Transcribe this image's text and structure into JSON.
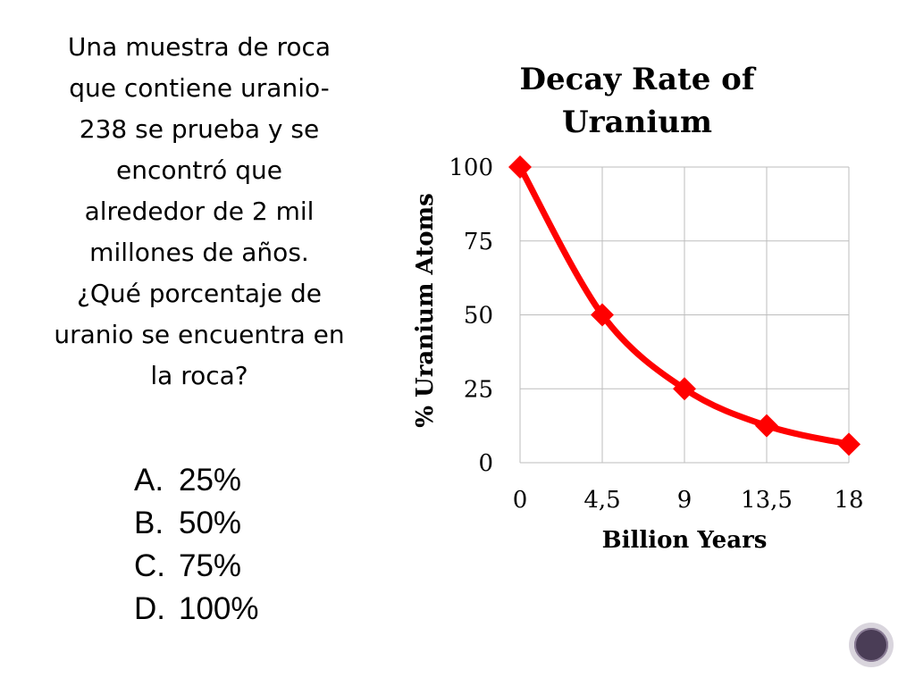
{
  "question": {
    "lines": [
      "Una muestra de roca",
      "que contiene uranio-",
      "238 se prueba y se",
      "encontró que",
      "alrededor de 2 mil",
      "millones de años.",
      "¿Qué porcentaje de",
      "uranio se encuentra en",
      "la roca?"
    ]
  },
  "options": [
    {
      "letter": "A.",
      "text": "25%"
    },
    {
      "letter": "B.",
      "text": "50%"
    },
    {
      "letter": "C.",
      "text": "75%"
    },
    {
      "letter": "D.",
      "text": "100%"
    }
  ],
  "chart_data": {
    "type": "line",
    "title_lines": [
      "Decay Rate of",
      "Uranium"
    ],
    "xlabel": "Billion Years",
    "ylabel": "% Uranium Atoms",
    "x_tick_labels": [
      "0",
      "4,5",
      "9",
      "13,5",
      "18"
    ],
    "y_tick_labels": [
      "0",
      "25",
      "50",
      "75",
      "100"
    ],
    "x": [
      0,
      4.5,
      9,
      13.5,
      18
    ],
    "series": [
      {
        "values": [
          100,
          50,
          25,
          12.5,
          6.25
        ]
      }
    ],
    "xlim": [
      0,
      18
    ],
    "ylim": [
      0,
      100
    ],
    "grid": true,
    "line_color": "#ff0000",
    "marker": "diamond"
  },
  "nav": {
    "icon": "navigation-circle-icon"
  }
}
